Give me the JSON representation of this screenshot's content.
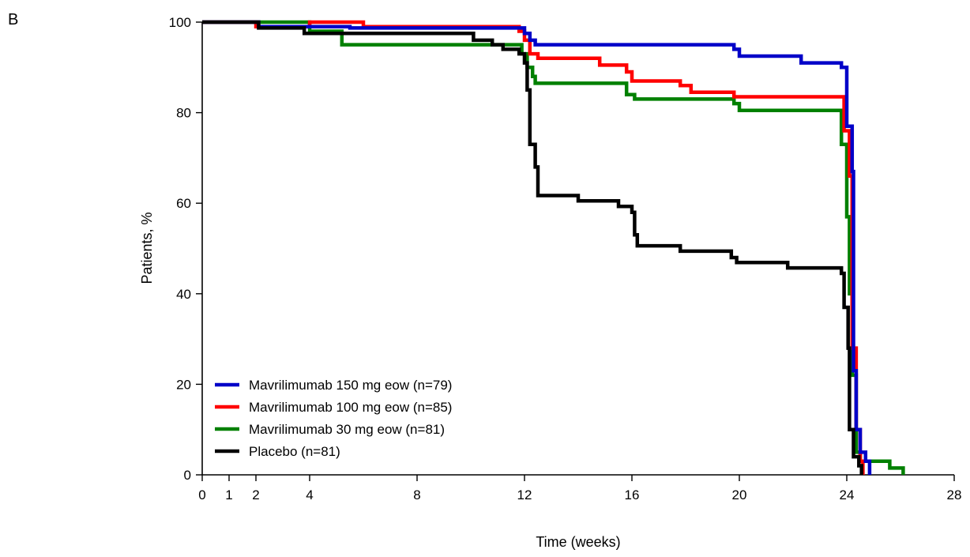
{
  "panel_label": "B",
  "chart_data": {
    "type": "line",
    "step": true,
    "title": "",
    "xlabel": "Time (weeks)",
    "ylabel": "Patients, %",
    "xlim": [
      0,
      28
    ],
    "ylim": [
      0,
      100
    ],
    "x_ticks": [
      0,
      1,
      2,
      4,
      8,
      12,
      16,
      20,
      24,
      28
    ],
    "y_ticks": [
      0,
      20,
      40,
      60,
      80,
      100
    ],
    "grid": false,
    "legend_position": "bottom-left",
    "series": [
      {
        "name": "Mavrilimumab 150 mg eow (n=79)",
        "color": "#0000c8",
        "points": [
          [
            0,
            100
          ],
          [
            2.1,
            100
          ],
          [
            2.1,
            99
          ],
          [
            5.5,
            99
          ],
          [
            5.5,
            98.7
          ],
          [
            12,
            98.7
          ],
          [
            12,
            97.5
          ],
          [
            12.2,
            97.5
          ],
          [
            12.2,
            96
          ],
          [
            12.4,
            96
          ],
          [
            12.4,
            95
          ],
          [
            19.8,
            95
          ],
          [
            19.8,
            94
          ],
          [
            20,
            94
          ],
          [
            20,
            92.5
          ],
          [
            22.3,
            92.5
          ],
          [
            22.3,
            91
          ],
          [
            23.8,
            91
          ],
          [
            23.8,
            90
          ],
          [
            24,
            90
          ],
          [
            24,
            77
          ],
          [
            24.2,
            77
          ],
          [
            24.2,
            67
          ],
          [
            24.25,
            67
          ],
          [
            24.25,
            23
          ],
          [
            24.35,
            23
          ],
          [
            24.35,
            10
          ],
          [
            24.5,
            10
          ],
          [
            24.5,
            5
          ],
          [
            24.7,
            5
          ],
          [
            24.7,
            3
          ],
          [
            24.85,
            3
          ],
          [
            24.85,
            0
          ]
        ]
      },
      {
        "name": "Mavrilimumab 100 mg eow (n=85)",
        "color": "#ff0000",
        "points": [
          [
            0,
            100
          ],
          [
            2,
            100
          ],
          [
            2,
            99
          ],
          [
            4,
            99
          ],
          [
            4,
            100
          ],
          [
            6,
            100
          ],
          [
            6,
            99
          ],
          [
            11.8,
            99
          ],
          [
            11.8,
            98
          ],
          [
            12,
            98
          ],
          [
            12,
            96
          ],
          [
            12.2,
            96
          ],
          [
            12.2,
            93
          ],
          [
            12.5,
            93
          ],
          [
            12.5,
            92
          ],
          [
            14.8,
            92
          ],
          [
            14.8,
            90.5
          ],
          [
            15.8,
            90.5
          ],
          [
            15.8,
            89
          ],
          [
            16,
            89
          ],
          [
            16,
            87
          ],
          [
            17.8,
            87
          ],
          [
            17.8,
            86
          ],
          [
            18.2,
            86
          ],
          [
            18.2,
            84.5
          ],
          [
            19.8,
            84.5
          ],
          [
            19.8,
            83.5
          ],
          [
            23.9,
            83.5
          ],
          [
            23.9,
            76
          ],
          [
            24.1,
            76
          ],
          [
            24.1,
            66
          ],
          [
            24.2,
            66
          ],
          [
            24.2,
            28
          ],
          [
            24.35,
            28
          ],
          [
            24.35,
            10
          ],
          [
            24.5,
            10
          ],
          [
            24.5,
            3
          ],
          [
            24.6,
            3
          ],
          [
            24.6,
            0
          ]
        ]
      },
      {
        "name": "Mavrilimumab 30 mg eow (n=81)",
        "color": "#008000",
        "points": [
          [
            0,
            100
          ],
          [
            4,
            100
          ],
          [
            4,
            98
          ],
          [
            5.2,
            98
          ],
          [
            5.2,
            95
          ],
          [
            11.9,
            95
          ],
          [
            11.9,
            93
          ],
          [
            12.1,
            93
          ],
          [
            12.1,
            90
          ],
          [
            12.3,
            90
          ],
          [
            12.3,
            88
          ],
          [
            12.4,
            88
          ],
          [
            12.4,
            86.5
          ],
          [
            15.8,
            86.5
          ],
          [
            15.8,
            84
          ],
          [
            16.1,
            84
          ],
          [
            16.1,
            83
          ],
          [
            19.8,
            83
          ],
          [
            19.8,
            82
          ],
          [
            20,
            82
          ],
          [
            20,
            80.5
          ],
          [
            23.8,
            80.5
          ],
          [
            23.8,
            73
          ],
          [
            24,
            73
          ],
          [
            24,
            57
          ],
          [
            24.1,
            57
          ],
          [
            24.1,
            40
          ],
          [
            24.2,
            40
          ],
          [
            24.2,
            22
          ],
          [
            24.35,
            22
          ],
          [
            24.35,
            5
          ],
          [
            24.5,
            5
          ],
          [
            24.5,
            3
          ],
          [
            25.6,
            3
          ],
          [
            25.6,
            1.5
          ],
          [
            26.1,
            1.5
          ],
          [
            26.1,
            0
          ]
        ]
      },
      {
        "name": "Placebo (n=81)",
        "color": "#000000",
        "points": [
          [
            0,
            100
          ],
          [
            2.1,
            100
          ],
          [
            2.1,
            98.7
          ],
          [
            3.8,
            98.7
          ],
          [
            3.8,
            97.5
          ],
          [
            10.1,
            97.5
          ],
          [
            10.1,
            96
          ],
          [
            10.8,
            96
          ],
          [
            10.8,
            95
          ],
          [
            11.2,
            95
          ],
          [
            11.2,
            94
          ],
          [
            11.8,
            94
          ],
          [
            11.8,
            93
          ],
          [
            12,
            93
          ],
          [
            12,
            91
          ],
          [
            12.1,
            91
          ],
          [
            12.1,
            85
          ],
          [
            12.2,
            85
          ],
          [
            12.2,
            73
          ],
          [
            12.4,
            73
          ],
          [
            12.4,
            68
          ],
          [
            12.5,
            68
          ],
          [
            12.5,
            61.7
          ],
          [
            14,
            61.7
          ],
          [
            14,
            60.5
          ],
          [
            15.5,
            60.5
          ],
          [
            15.5,
            59.3
          ],
          [
            16,
            59.3
          ],
          [
            16,
            58
          ],
          [
            16.1,
            58
          ],
          [
            16.1,
            53
          ],
          [
            16.2,
            53
          ],
          [
            16.2,
            50.6
          ],
          [
            17.8,
            50.6
          ],
          [
            17.8,
            49.4
          ],
          [
            19.7,
            49.4
          ],
          [
            19.7,
            48
          ],
          [
            19.9,
            48
          ],
          [
            19.9,
            46.9
          ],
          [
            21.8,
            46.9
          ],
          [
            21.8,
            45.7
          ],
          [
            23.8,
            45.7
          ],
          [
            23.8,
            44.5
          ],
          [
            23.9,
            44.5
          ],
          [
            23.9,
            37
          ],
          [
            24.05,
            37
          ],
          [
            24.05,
            28
          ],
          [
            24.1,
            28
          ],
          [
            24.1,
            10
          ],
          [
            24.25,
            10
          ],
          [
            24.25,
            4
          ],
          [
            24.45,
            4
          ],
          [
            24.45,
            2
          ],
          [
            24.55,
            2
          ],
          [
            24.55,
            0
          ]
        ]
      }
    ]
  }
}
